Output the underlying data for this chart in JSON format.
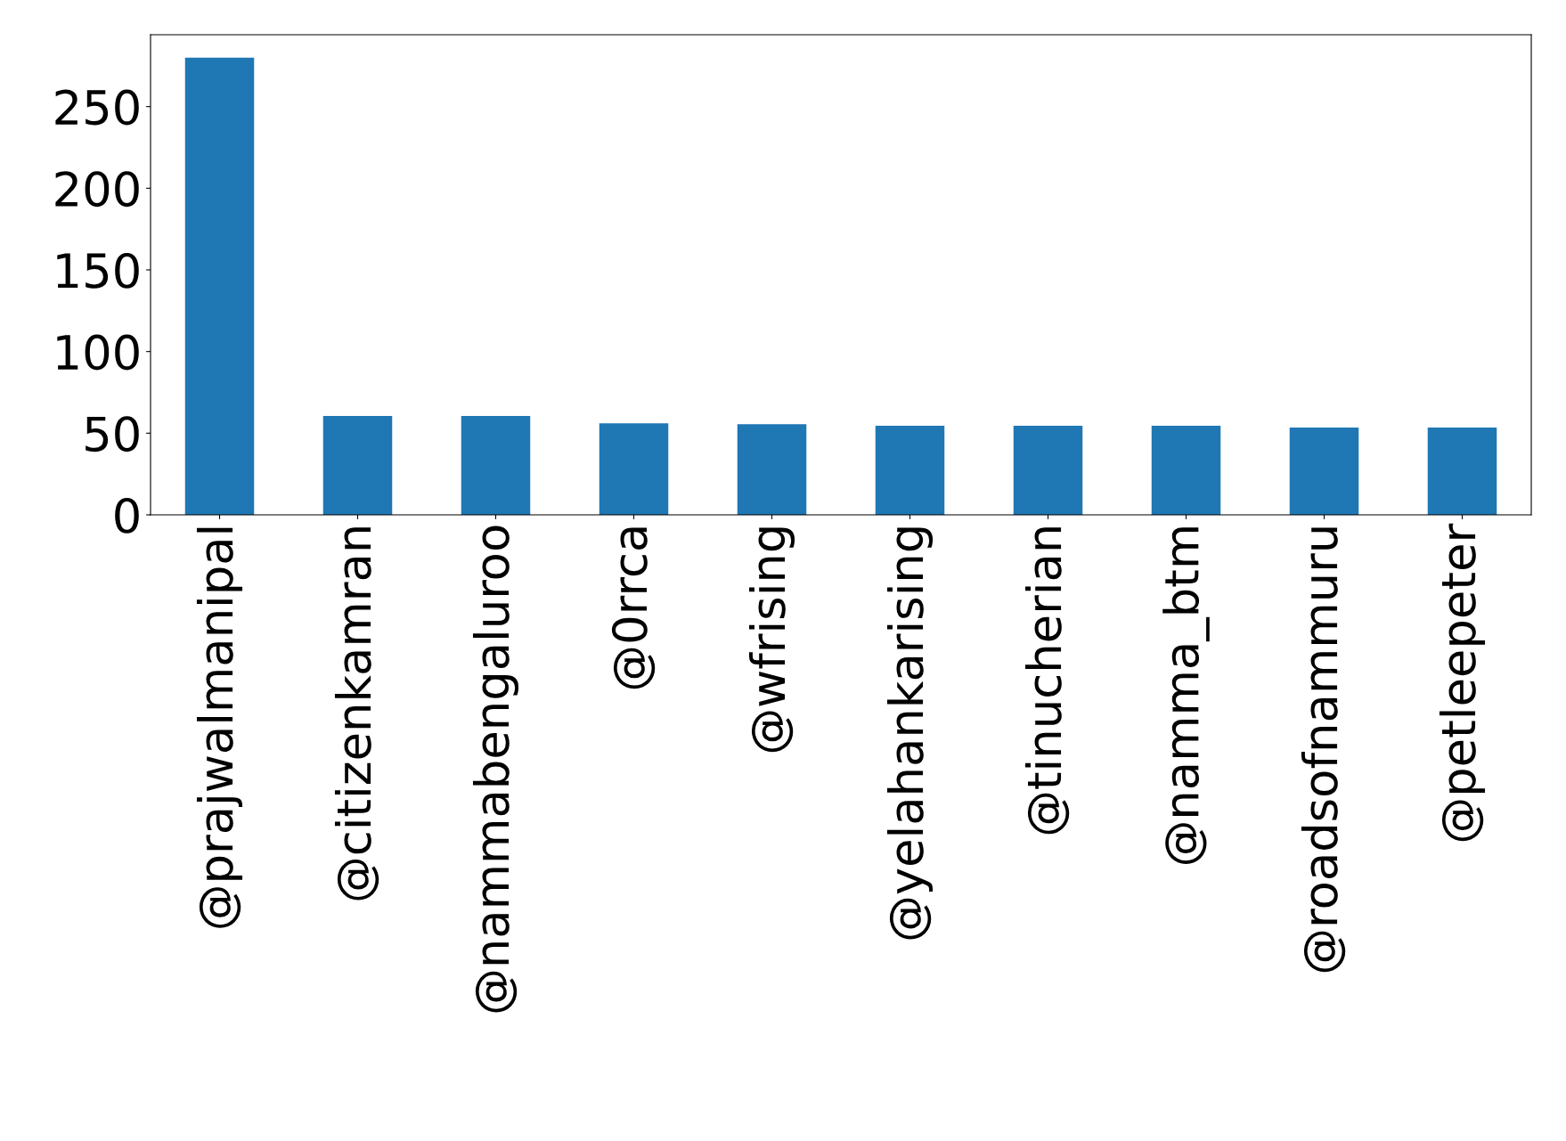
{
  "chart_data": {
    "type": "bar",
    "categories": [
      "@prajwalmanipal",
      "@citizenkamran",
      "@nammabengaluroo",
      "@0rrca",
      "@wfrising",
      "@yelahankarising",
      "@tinucherian",
      "@namma_btm",
      "@roadsofnammuru",
      "@petleepeter"
    ],
    "values": [
      280,
      60.5,
      60.5,
      56,
      55.5,
      54.5,
      54.5,
      54.5,
      53.5,
      53.5
    ],
    "color": "#1f77b4",
    "ylim": [
      0,
      294
    ],
    "yticks": [
      0,
      50,
      100,
      150,
      200,
      250
    ],
    "grid": false
  }
}
